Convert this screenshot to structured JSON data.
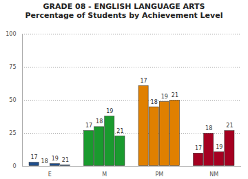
{
  "chart_data": {
    "type": "bar",
    "title": "GRADE 08 - ENGLISH LANGUAGE ARTS",
    "subtitle": "Percentage of Students by Achievement Level",
    "categories": [
      "E",
      "M",
      "PM",
      "NM"
    ],
    "colors": [
      "#1f4e8c",
      "#1a9a2e",
      "#e08000",
      "#a50021"
    ],
    "series": [
      {
        "name": "17",
        "values": [
          3,
          27,
          61,
          10
        ]
      },
      {
        "name": "18",
        "values": [
          0,
          30,
          45,
          25
        ]
      },
      {
        "name": "19",
        "values": [
          2,
          38,
          49,
          11
        ]
      },
      {
        "name": "21",
        "values": [
          1,
          23,
          50,
          27
        ]
      }
    ],
    "ylim": [
      0,
      100
    ],
    "yticks": [
      0,
      25,
      50,
      75,
      100
    ],
    "grid": true
  }
}
